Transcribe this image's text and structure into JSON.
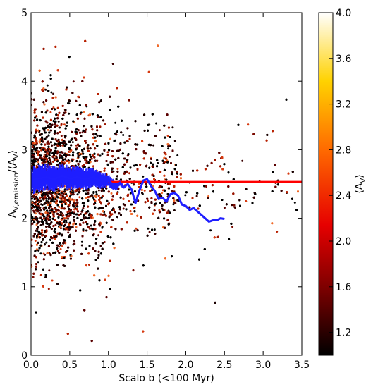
{
  "chart_data": {
    "type": "scatter",
    "title": "",
    "xlabel": "Scalo b (<100 Myr)",
    "ylabel": "A_V,emission/⟨A_V⟩",
    "xlim": [
      0.0,
      3.5
    ],
    "ylim": [
      0,
      5
    ],
    "xticks": [
      "0.0",
      "0.5",
      "1.0",
      "1.5",
      "2.0",
      "2.5",
      "3.0",
      "3.5"
    ],
    "yticks": [
      "0",
      "1",
      "2",
      "3",
      "4",
      "5"
    ],
    "grid": false,
    "legend": "none",
    "colorbar": {
      "label": "⟨A_V⟩",
      "range": [
        1.0,
        4.0
      ],
      "ticks": [
        "1.2",
        "1.6",
        "2.0",
        "2.4",
        "2.8",
        "3.2",
        "3.6",
        "4.0"
      ],
      "colormap": "hot",
      "colors": [
        "#000000",
        "#7f0000",
        "#e60000",
        "#ff6a00",
        "#ffd200",
        "#ffffff"
      ]
    },
    "scatter_summary": {
      "approx_points": 9000,
      "dense_region_x": [
        0.0,
        1.2
      ],
      "dense_region_y": [
        1.3,
        3.7
      ],
      "point_color_range": [
        "#000000",
        "#ff8a3a"
      ]
    },
    "reference_line": {
      "y": 2.53,
      "x": [
        1.0,
        3.5
      ],
      "color": "#ff0000"
    },
    "running_median": {
      "color": "#1f1fff",
      "x": [
        0.0,
        0.1,
        0.2,
        0.3,
        0.4,
        0.5,
        0.6,
        0.7,
        0.8,
        0.9,
        1.0,
        1.05,
        1.1,
        1.15,
        1.2,
        1.25,
        1.3,
        1.35,
        1.4,
        1.45,
        1.5,
        1.55,
        1.6,
        1.65,
        1.7,
        1.75,
        1.8,
        1.85,
        1.9,
        1.95,
        2.0,
        2.05,
        2.1,
        2.15,
        2.2,
        2.25,
        2.3,
        2.35,
        2.4,
        2.45,
        2.5
      ],
      "y": [
        2.55,
        2.58,
        2.6,
        2.57,
        2.62,
        2.58,
        2.6,
        2.57,
        2.6,
        2.55,
        2.55,
        2.5,
        2.47,
        2.52,
        2.45,
        2.5,
        2.42,
        2.22,
        2.4,
        2.55,
        2.57,
        2.47,
        2.4,
        2.28,
        2.3,
        2.24,
        2.35,
        2.37,
        2.33,
        2.2,
        2.18,
        2.12,
        2.15,
        2.1,
        2.05,
        2.0,
        1.95,
        1.97,
        1.97,
        2.0,
        1.99
      ],
      "band_halfwidth_x": [
        0.0,
        0.3,
        0.6,
        0.9,
        1.1,
        1.2
      ],
      "band_halfwidth_y": [
        0.15,
        0.14,
        0.13,
        0.09,
        0.05,
        0.02
      ]
    }
  }
}
